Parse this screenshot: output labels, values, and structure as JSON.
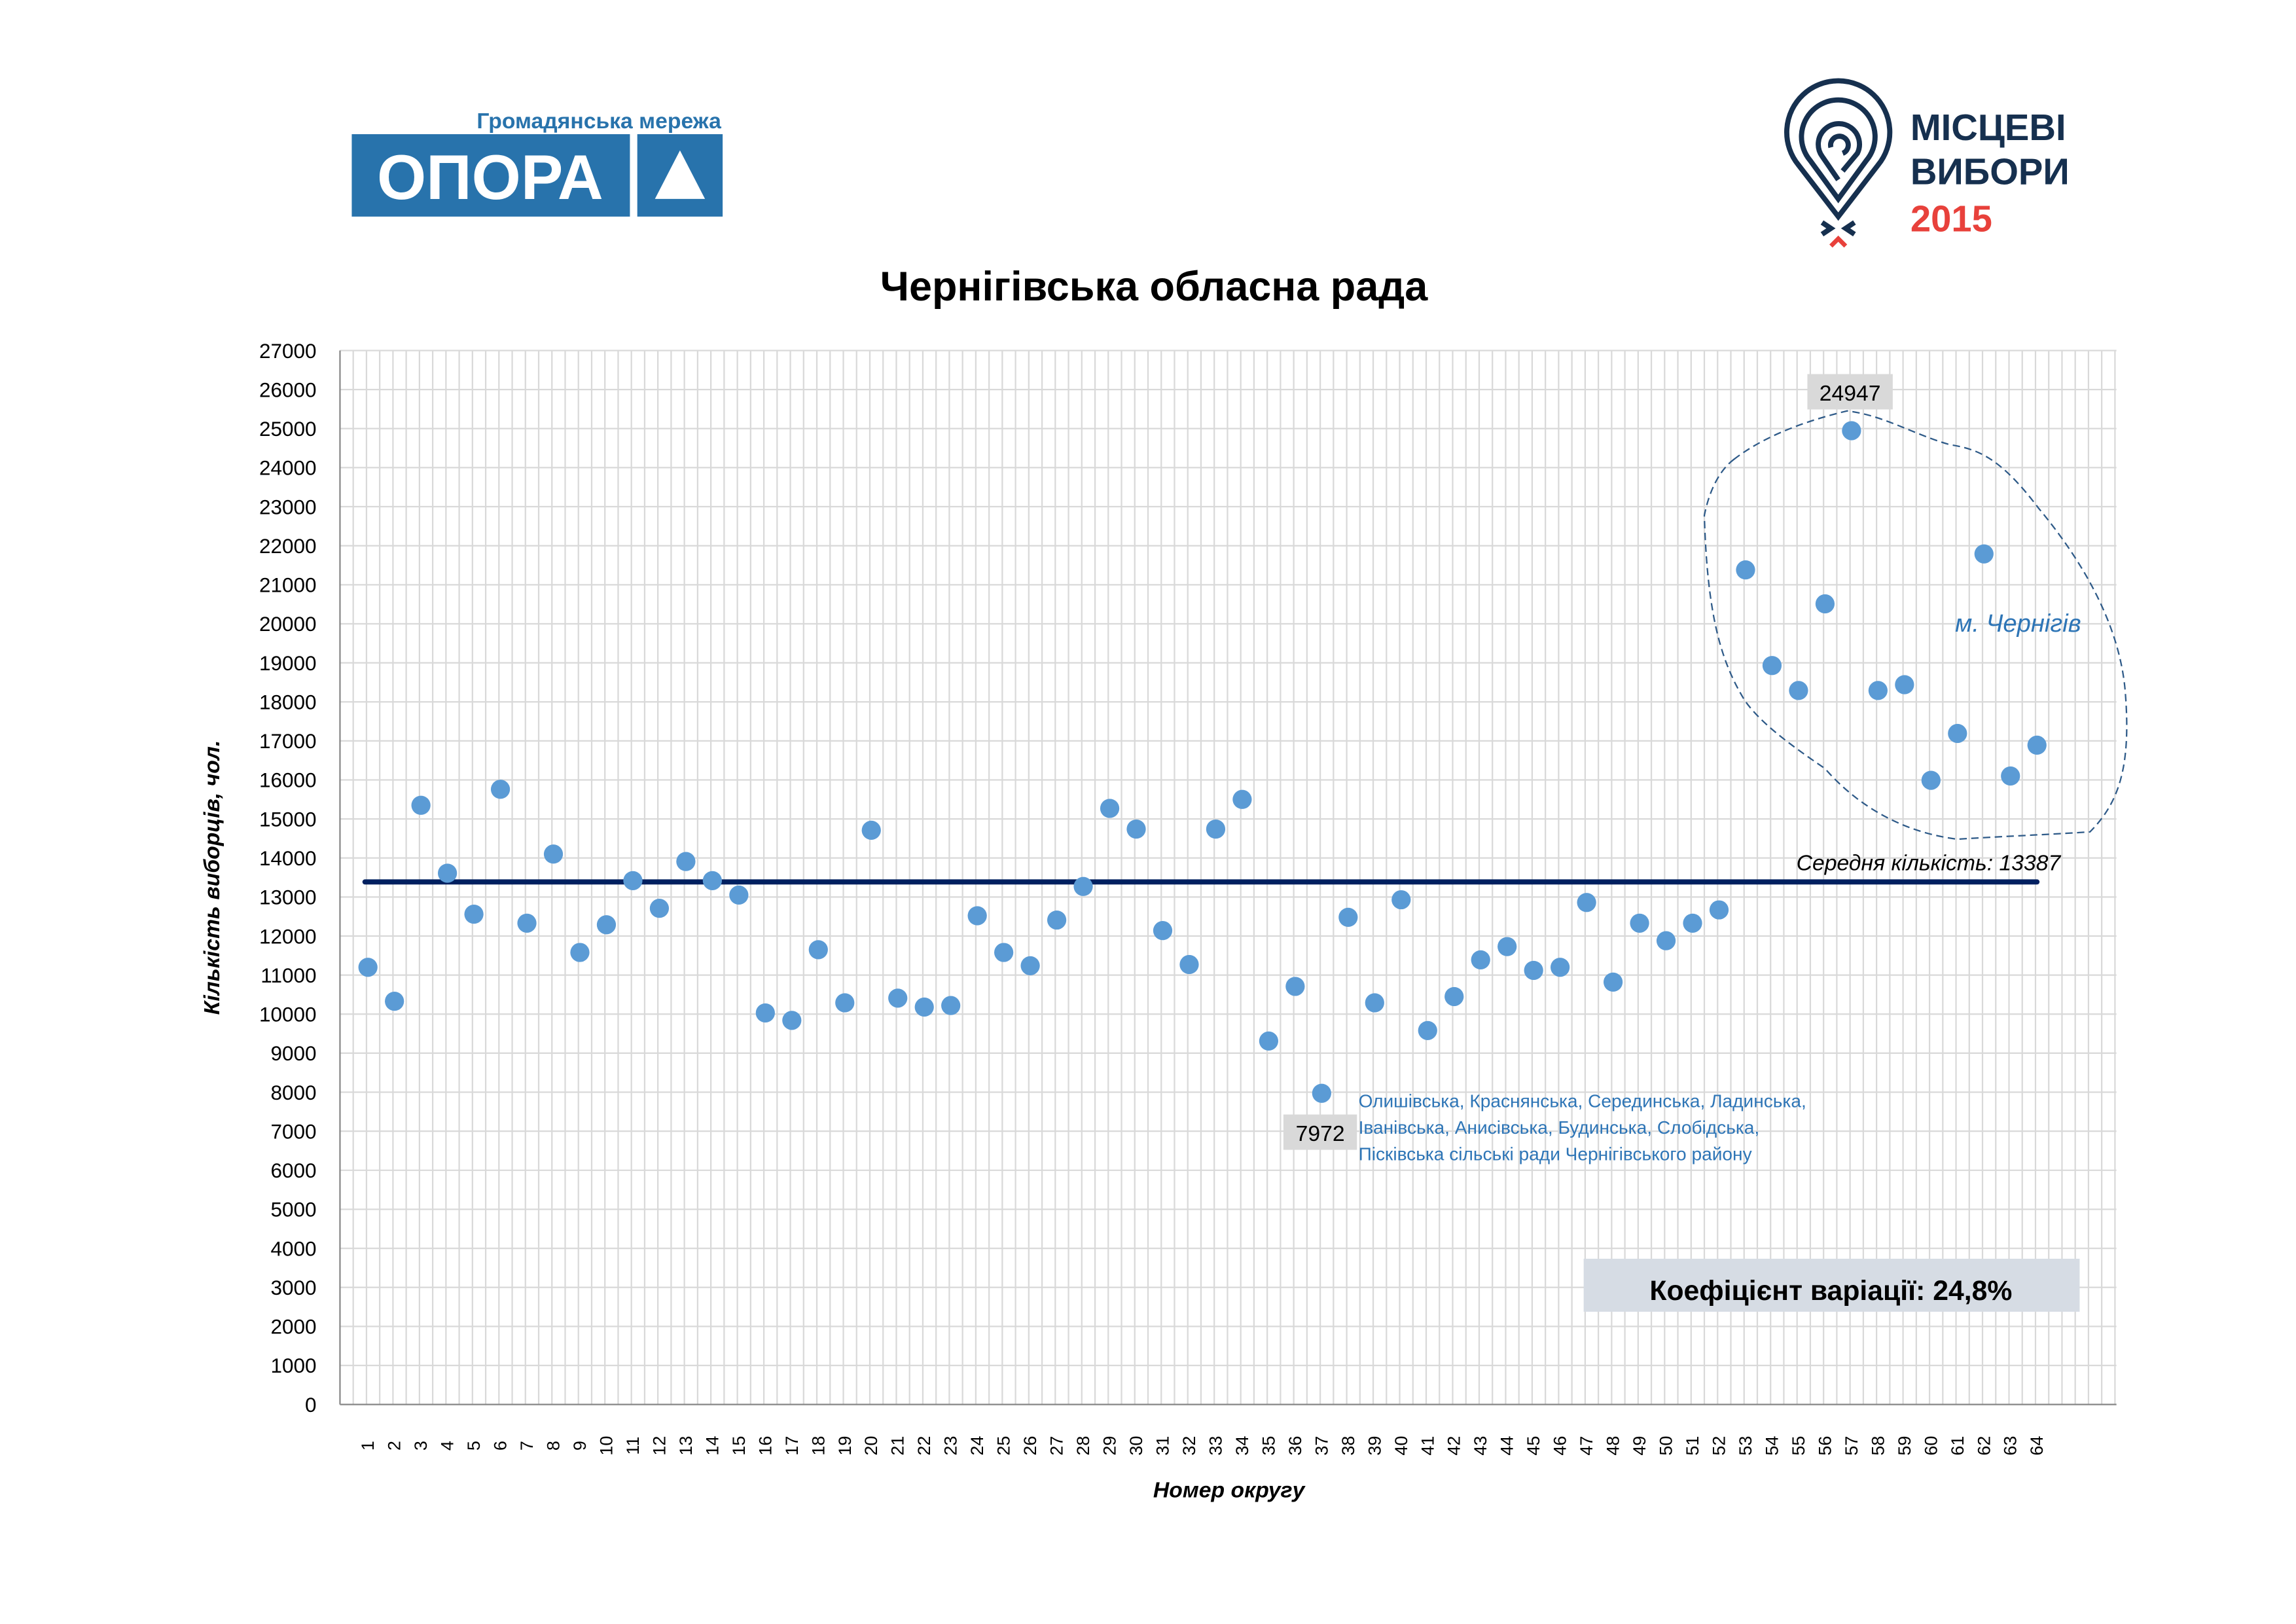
{
  "logos": {
    "opora_tagline": "Громадянська мережа",
    "opora_name": "ОПОРА",
    "elections_line1": "МІСЦЕВІ",
    "elections_line2": "ВИБОРИ",
    "elections_year": "2015"
  },
  "colors": {
    "dot": "#5b9bd5",
    "mean_line": "#002060",
    "grid": "#d9d9d9",
    "annotation_text": "#2e75b6",
    "label_box": "#d9d9d9",
    "coef_box": "#d6dce4",
    "opora_blue": "#2873ac",
    "logo_navy": "#16304f",
    "logo_red": "#e8413b"
  },
  "chart_data": {
    "type": "scatter",
    "title": "Чернігівська обласна рада",
    "xlabel": "Номер округу",
    "ylabel": "Кількість виборців, чол.",
    "ylim": [
      0,
      27000
    ],
    "ystep": 1000,
    "grid": true,
    "x": [
      1,
      2,
      3,
      4,
      5,
      6,
      7,
      8,
      9,
      10,
      11,
      12,
      13,
      14,
      15,
      16,
      17,
      18,
      19,
      20,
      21,
      22,
      23,
      24,
      25,
      26,
      27,
      28,
      29,
      30,
      31,
      32,
      33,
      34,
      35,
      36,
      37,
      38,
      39,
      40,
      41,
      42,
      43,
      44,
      45,
      46,
      47,
      48,
      49,
      50,
      51,
      52,
      53,
      54,
      55,
      56,
      57,
      58,
      59,
      60,
      61,
      62,
      63,
      64
    ],
    "y": [
      11200,
      10330,
      15350,
      13610,
      12560,
      15760,
      12330,
      14100,
      11580,
      12290,
      13420,
      12710,
      13910,
      13420,
      13050,
      10030,
      9840,
      11650,
      10290,
      14710,
      10410,
      10180,
      10220,
      12520,
      11580,
      11240,
      12410,
      13270,
      15270,
      14740,
      12140,
      11270,
      14740,
      15500,
      9310,
      10710,
      7972,
      12480,
      10290,
      12930,
      9580,
      10450,
      11390,
      11730,
      11120,
      11200,
      12860,
      10820,
      12330,
      11880,
      12330,
      12670,
      21380,
      18930,
      18290,
      20510,
      24947,
      18290,
      18440,
      15990,
      17190,
      21790,
      16100,
      16890
    ],
    "mean": {
      "value": 13387,
      "label": "Середня кількість:  13387"
    },
    "annotations": {
      "max_label": "24947",
      "min_label": "7972",
      "min_note": [
        "Олишівська, Краснянська, Серединська, Ладинська,",
        "Іванівська, Анисівська, Будинська, Слобідська,",
        "Пісківська сільські ради Чернігівського району"
      ],
      "city_group_label": "м. Чернігів"
    },
    "coefficient": "Коефіцієнт варіації:  24,8%"
  }
}
